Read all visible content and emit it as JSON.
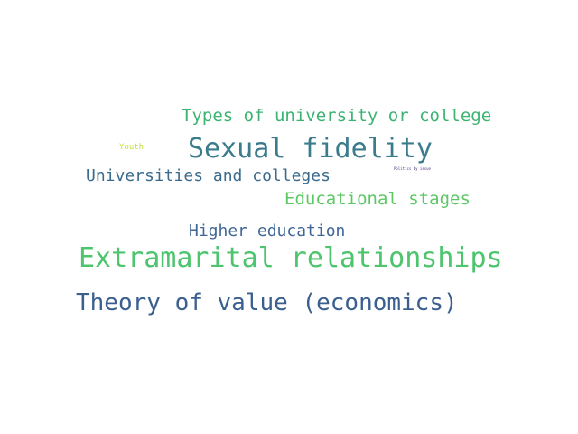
{
  "word_cloud": {
    "words": [
      {
        "text": "Types of university or college",
        "color": "#3cb371"
      },
      {
        "text": "Sexual fidelity",
        "color": "#3a7b8c"
      },
      {
        "text": "Youth",
        "color": "#c5e03a"
      },
      {
        "text": "Universities and colleges",
        "color": "#3a6b8e"
      },
      {
        "text": "Politics by issue",
        "color": "#4b2d7f"
      },
      {
        "text": "Educational stages",
        "color": "#5cc864"
      },
      {
        "text": "Higher education",
        "color": "#3f6696"
      },
      {
        "text": "Extramarital relationships",
        "color": "#4dc46e"
      },
      {
        "text": "Theory of value (economics)",
        "color": "#3b5f8f"
      }
    ]
  }
}
